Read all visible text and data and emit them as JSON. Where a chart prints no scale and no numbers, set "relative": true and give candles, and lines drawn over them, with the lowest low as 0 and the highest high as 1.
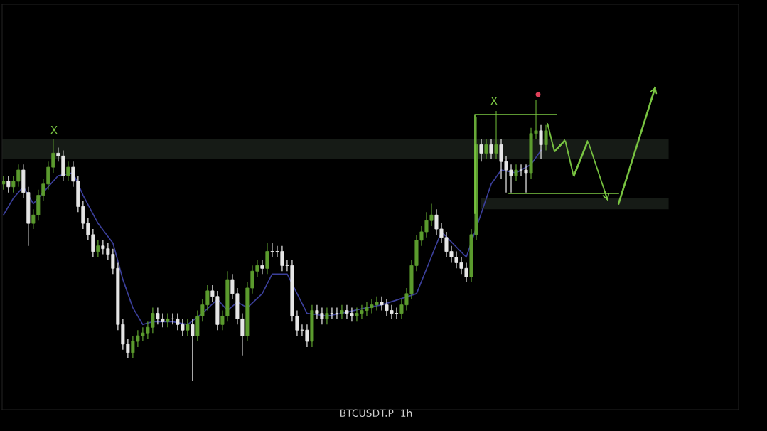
{
  "chart_data": {
    "type": "candlestick",
    "relative": true,
    "categories": [
      null,
      null,
      null,
      null,
      null,
      null,
      null,
      null,
      null,
      null,
      null,
      null,
      null,
      null,
      null,
      null,
      null,
      null,
      null,
      null,
      null,
      null,
      null,
      null,
      null,
      null,
      null,
      null,
      null,
      null,
      null,
      null,
      null,
      null,
      null,
      null,
      null,
      null,
      null,
      null,
      null,
      null,
      null,
      null,
      null,
      null,
      null,
      null,
      null,
      null,
      null,
      null,
      null,
      null,
      null,
      null,
      null,
      null,
      null,
      null,
      null,
      null,
      null,
      null,
      null,
      null,
      null,
      null,
      null,
      null,
      null,
      null,
      null,
      null,
      null,
      null,
      null,
      null,
      null,
      null,
      null,
      null,
      null,
      null,
      null,
      null,
      null,
      null,
      null,
      null,
      null,
      null,
      null,
      null,
      null,
      null,
      null,
      null,
      null,
      null,
      null,
      null,
      null,
      null,
      null,
      null,
      null,
      null,
      null,
      null
    ],
    "ohlc": [
      [
        0.7,
        0.73,
        0.68,
        0.71
      ],
      [
        0.71,
        0.73,
        0.67,
        0.69
      ],
      [
        0.69,
        0.73,
        0.67,
        0.71
      ],
      [
        0.71,
        0.77,
        0.69,
        0.75
      ],
      [
        0.75,
        0.77,
        0.65,
        0.67
      ],
      [
        0.67,
        0.69,
        0.48,
        0.56
      ],
      [
        0.56,
        0.61,
        0.54,
        0.59
      ],
      [
        0.59,
        0.68,
        0.57,
        0.66
      ],
      [
        0.66,
        0.72,
        0.64,
        0.7
      ],
      [
        0.7,
        0.78,
        0.68,
        0.76
      ],
      [
        0.76,
        0.86,
        0.74,
        0.81
      ],
      [
        0.81,
        0.83,
        0.78,
        0.8
      ],
      [
        0.8,
        0.82,
        0.71,
        0.73
      ],
      [
        0.73,
        0.78,
        0.71,
        0.76
      ],
      [
        0.76,
        0.78,
        0.69,
        0.71
      ],
      [
        0.71,
        0.73,
        0.6,
        0.62
      ],
      [
        0.62,
        0.64,
        0.54,
        0.56
      ],
      [
        0.56,
        0.58,
        0.5,
        0.52
      ],
      [
        0.52,
        0.54,
        0.44,
        0.46
      ],
      [
        0.46,
        0.5,
        0.44,
        0.48
      ],
      [
        0.48,
        0.5,
        0.45,
        0.47
      ],
      [
        0.47,
        0.49,
        0.43,
        0.45
      ],
      [
        0.45,
        0.47,
        0.38,
        0.4
      ],
      [
        0.4,
        0.42,
        0.18,
        0.2
      ],
      [
        0.2,
        0.22,
        0.11,
        0.13
      ],
      [
        0.13,
        0.15,
        0.08,
        0.1
      ],
      [
        0.1,
        0.16,
        0.08,
        0.14
      ],
      [
        0.14,
        0.18,
        0.12,
        0.16
      ],
      [
        0.16,
        0.19,
        0.14,
        0.17
      ],
      [
        0.17,
        0.21,
        0.15,
        0.19
      ],
      [
        0.19,
        0.26,
        0.17,
        0.24
      ],
      [
        0.24,
        0.26,
        0.2,
        0.22
      ],
      [
        0.22,
        0.24,
        0.19,
        0.21
      ],
      [
        0.21,
        0.24,
        0.19,
        0.22
      ],
      [
        0.22,
        0.24,
        0.2,
        0.22
      ],
      [
        0.22,
        0.24,
        0.18,
        0.2
      ],
      [
        0.2,
        0.22,
        0.16,
        0.18
      ],
      [
        0.18,
        0.22,
        0.16,
        0.2
      ],
      [
        0.2,
        0.22,
        0.0,
        0.16
      ],
      [
        0.16,
        0.25,
        0.14,
        0.23
      ],
      [
        0.23,
        0.29,
        0.21,
        0.27
      ],
      [
        0.27,
        0.34,
        0.25,
        0.32
      ],
      [
        0.32,
        0.34,
        0.28,
        0.3
      ],
      [
        0.3,
        0.32,
        0.18,
        0.2
      ],
      [
        0.2,
        0.25,
        0.18,
        0.23
      ],
      [
        0.23,
        0.39,
        0.21,
        0.36
      ],
      [
        0.36,
        0.38,
        0.29,
        0.31
      ],
      [
        0.31,
        0.33,
        0.2,
        0.22
      ],
      [
        0.22,
        0.24,
        0.09,
        0.16
      ],
      [
        0.16,
        0.35,
        0.14,
        0.33
      ],
      [
        0.33,
        0.41,
        0.31,
        0.39
      ],
      [
        0.39,
        0.43,
        0.37,
        0.41
      ],
      [
        0.41,
        0.43,
        0.38,
        0.4
      ],
      [
        0.4,
        0.49,
        0.38,
        0.46
      ],
      [
        0.46,
        0.49,
        0.44,
        0.46
      ],
      [
        0.46,
        0.48,
        0.44,
        0.46
      ],
      [
        0.46,
        0.48,
        0.39,
        0.41
      ],
      [
        0.41,
        0.43,
        0.39,
        0.41
      ],
      [
        0.41,
        0.43,
        0.21,
        0.23
      ],
      [
        0.23,
        0.25,
        0.16,
        0.18
      ],
      [
        0.18,
        0.2,
        0.16,
        0.18
      ],
      [
        0.18,
        0.2,
        0.12,
        0.14
      ],
      [
        0.14,
        0.27,
        0.12,
        0.25
      ],
      [
        0.25,
        0.27,
        0.22,
        0.24
      ],
      [
        0.24,
        0.26,
        0.2,
        0.22
      ],
      [
        0.22,
        0.26,
        0.2,
        0.24
      ],
      [
        0.24,
        0.26,
        0.22,
        0.24
      ],
      [
        0.24,
        0.26,
        0.22,
        0.24
      ],
      [
        0.24,
        0.27,
        0.22,
        0.25
      ],
      [
        0.25,
        0.27,
        0.22,
        0.24
      ],
      [
        0.24,
        0.26,
        0.21,
        0.23
      ],
      [
        0.23,
        0.26,
        0.21,
        0.24
      ],
      [
        0.24,
        0.27,
        0.22,
        0.25
      ],
      [
        0.25,
        0.28,
        0.23,
        0.26
      ],
      [
        0.26,
        0.29,
        0.24,
        0.27
      ],
      [
        0.27,
        0.3,
        0.25,
        0.28
      ],
      [
        0.28,
        0.3,
        0.25,
        0.27
      ],
      [
        0.27,
        0.29,
        0.23,
        0.25
      ],
      [
        0.25,
        0.27,
        0.22,
        0.24
      ],
      [
        0.24,
        0.26,
        0.22,
        0.24
      ],
      [
        0.24,
        0.29,
        0.22,
        0.27
      ],
      [
        0.27,
        0.33,
        0.25,
        0.31
      ],
      [
        0.31,
        0.43,
        0.29,
        0.41
      ],
      [
        0.41,
        0.52,
        0.39,
        0.5
      ],
      [
        0.5,
        0.55,
        0.48,
        0.53
      ],
      [
        0.53,
        0.6,
        0.51,
        0.57
      ],
      [
        0.57,
        0.63,
        0.55,
        0.59
      ],
      [
        0.59,
        0.61,
        0.52,
        0.54
      ],
      [
        0.54,
        0.56,
        0.49,
        0.51
      ],
      [
        0.51,
        0.53,
        0.44,
        0.46
      ],
      [
        0.46,
        0.48,
        0.42,
        0.44
      ],
      [
        0.44,
        0.46,
        0.4,
        0.42
      ],
      [
        0.42,
        0.44,
        0.38,
        0.4
      ],
      [
        0.4,
        0.42,
        0.35,
        0.37
      ],
      [
        0.37,
        0.54,
        0.35,
        0.52
      ],
      [
        0.52,
        0.94,
        0.5,
        0.84
      ],
      [
        0.84,
        0.86,
        0.78,
        0.81
      ],
      [
        0.81,
        0.86,
        0.79,
        0.84
      ],
      [
        0.84,
        0.86,
        0.79,
        0.81
      ],
      [
        0.81,
        0.96,
        0.79,
        0.84
      ],
      [
        0.84,
        0.86,
        0.72,
        0.78
      ],
      [
        0.78,
        0.8,
        0.67,
        0.75
      ],
      [
        0.75,
        0.77,
        0.67,
        0.73
      ],
      [
        0.73,
        0.77,
        0.71,
        0.75
      ],
      [
        0.75,
        0.77,
        0.73,
        0.75
      ],
      [
        0.75,
        0.77,
        0.67,
        0.74
      ],
      [
        0.74,
        0.9,
        0.72,
        0.88
      ],
      [
        0.88,
        1.0,
        0.86,
        0.89
      ],
      [
        0.89,
        0.91,
        0.79,
        0.84
      ],
      [
        0.84,
        0.91,
        0.82,
        0.89
      ]
    ],
    "colors": [
      "#5b9b2e",
      "#e6e6e6",
      "#5b9b2e",
      "#5b9b2e",
      "#e6e6e6",
      "#e6e6e6",
      "#5b9b2e",
      "#5b9b2e",
      "#5b9b2e",
      "#5b9b2e",
      "#5b9b2e",
      "#e6e6e6",
      "#e6e6e6",
      "#5b9b2e",
      "#e6e6e6",
      "#e6e6e6",
      "#e6e6e6",
      "#e6e6e6",
      "#e6e6e6",
      "#5b9b2e",
      "#e6e6e6",
      "#e6e6e6",
      "#e6e6e6",
      "#e6e6e6",
      "#e6e6e6",
      "#e6e6e6",
      "#5b9b2e",
      "#5b9b2e",
      "#5b9b2e",
      "#5b9b2e",
      "#5b9b2e",
      "#e6e6e6",
      "#e6e6e6",
      "#5b9b2e",
      "#e6e6e6",
      "#e6e6e6",
      "#e6e6e6",
      "#5b9b2e",
      "#e6e6e6",
      "#5b9b2e",
      "#5b9b2e",
      "#5b9b2e",
      "#e6e6e6",
      "#e6e6e6",
      "#5b9b2e",
      "#5b9b2e",
      "#e6e6e6",
      "#e6e6e6",
      "#e6e6e6",
      "#5b9b2e",
      "#5b9b2e",
      "#5b9b2e",
      "#e6e6e6",
      "#5b9b2e",
      "#e6e6e6",
      "#e6e6e6",
      "#e6e6e6",
      "#e6e6e6",
      "#e6e6e6",
      "#e6e6e6",
      "#e6e6e6",
      "#e6e6e6",
      "#5b9b2e",
      "#e6e6e6",
      "#e6e6e6",
      "#5b9b2e",
      "#e6e6e6",
      "#e6e6e6",
      "#5b9b2e",
      "#e6e6e6",
      "#e6e6e6",
      "#5b9b2e",
      "#5b9b2e",
      "#5b9b2e",
      "#5b9b2e",
      "#5b9b2e",
      "#e6e6e6",
      "#e6e6e6",
      "#e6e6e6",
      "#e6e6e6",
      "#5b9b2e",
      "#5b9b2e",
      "#5b9b2e",
      "#5b9b2e",
      "#5b9b2e",
      "#5b9b2e",
      "#5b9b2e",
      "#e6e6e6",
      "#e6e6e6",
      "#e6e6e6",
      "#e6e6e6",
      "#e6e6e6",
      "#e6e6e6",
      "#e6e6e6",
      "#5b9b2e",
      "#5b9b2e",
      "#e6e6e6",
      "#5b9b2e",
      "#e6e6e6",
      "#5b9b2e",
      "#e6e6e6",
      "#e6e6e6",
      "#e6e6e6",
      "#5b9b2e",
      "#e6e6e6",
      "#e6e6e6",
      "#5b9b2e",
      "#5b9b2e",
      "#e6e6e6",
      "#5b9b2e"
    ],
    "series": [
      {
        "type": "line",
        "color": "#3b3f9a",
        "values": [
          0.59,
          null,
          0.65,
          null,
          0.69,
          null,
          0.63,
          0.65,
          null,
          null,
          null,
          0.73,
          null,
          null,
          0.74,
          null,
          0.66,
          null,
          null,
          0.56,
          null,
          null,
          0.49,
          null,
          0.36,
          null,
          0.26,
          null,
          0.2,
          null,
          0.21,
          null,
          null,
          null,
          0.21,
          null,
          null,
          0.2,
          null,
          null,
          0.24,
          null,
          null,
          0.29,
          null,
          0.25,
          null,
          0.28,
          null,
          0.26,
          null,
          null,
          0.31,
          null,
          0.38,
          null,
          null,
          0.38,
          null,
          null,
          null,
          0.24,
          null,
          null,
          null,
          0.23,
          null,
          null,
          0.24,
          null,
          null,
          null,
          null,
          0.26,
          null,
          null,
          0.27,
          null,
          null,
          null,
          null,
          null,
          null,
          0.31,
          null,
          null,
          null,
          null,
          0.53,
          null,
          null,
          null,
          null,
          0.44,
          null,
          null,
          null,
          null,
          0.7,
          null,
          0.75,
          null,
          null,
          0.74,
          null,
          null,
          0.77,
          null,
          0.82,
          null
        ]
      }
    ],
    "bands": [
      {
        "axis": "y",
        "from": 0.79,
        "to": 0.86,
        "color": "#161b16"
      },
      {
        "axis": "y",
        "from": 0.61,
        "to": 0.65,
        "color": "#161b16"
      }
    ],
    "annotations": [
      "X",
      "X",
      "BTCUSDT.P  1h"
    ]
  }
}
